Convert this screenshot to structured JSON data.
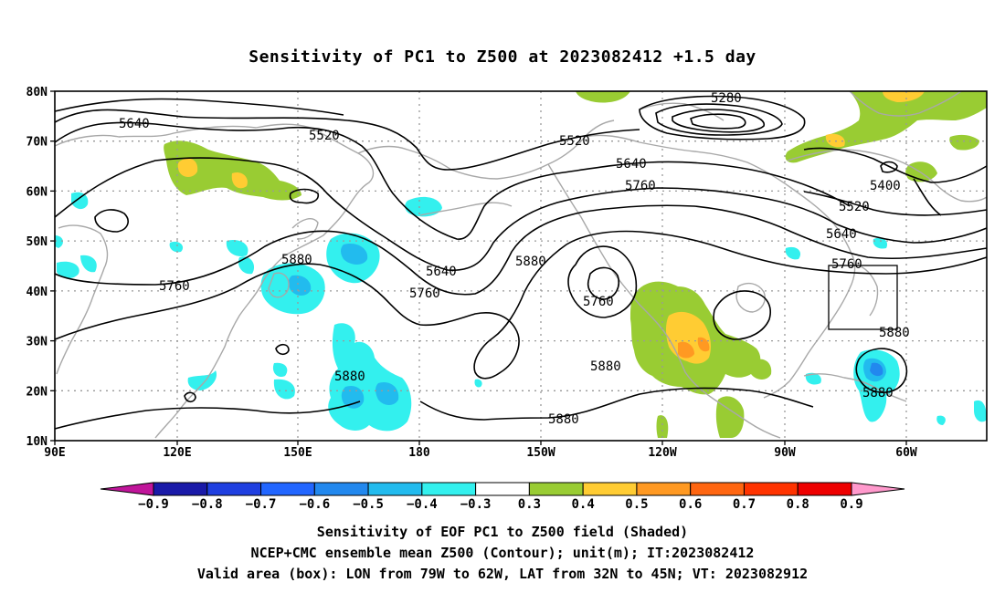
{
  "title": "Sensitivity of PC1 to Z500 at 2023082412 +1.5 day",
  "axes": {
    "lat_labels": [
      "80N",
      "70N",
      "60N",
      "50N",
      "40N",
      "30N",
      "20N",
      "10N"
    ],
    "lon_labels": [
      "90E",
      "120E",
      "150E",
      "180",
      "150W",
      "120W",
      "90W",
      "60W"
    ]
  },
  "contour_labels": [
    {
      "id": "c1",
      "text": "5280"
    },
    {
      "id": "c2",
      "text": "5640"
    },
    {
      "id": "c3",
      "text": "5520"
    },
    {
      "id": "c4",
      "text": "5520"
    },
    {
      "id": "c5",
      "text": "5640"
    },
    {
      "id": "c6",
      "text": "5760"
    },
    {
      "id": "c7",
      "text": "5400"
    },
    {
      "id": "c8",
      "text": "5520"
    },
    {
      "id": "c9",
      "text": "5640"
    },
    {
      "id": "c10",
      "text": "5760"
    },
    {
      "id": "c11",
      "text": "5880"
    },
    {
      "id": "c12",
      "text": "5760"
    },
    {
      "id": "c13",
      "text": "5880"
    },
    {
      "id": "c14",
      "text": "5640"
    },
    {
      "id": "c15",
      "text": "5760"
    },
    {
      "id": "c16",
      "text": "5880"
    },
    {
      "id": "c17",
      "text": "5760"
    },
    {
      "id": "c18",
      "text": "5880"
    },
    {
      "id": "c19",
      "text": "5880"
    },
    {
      "id": "c20",
      "text": "5880"
    },
    {
      "id": "c21",
      "text": "5880"
    }
  ],
  "colorbar": {
    "ticks": [
      "−0.9",
      "−0.8",
      "−0.7",
      "−0.6",
      "−0.5",
      "−0.4",
      "−0.3",
      "0.3",
      "0.4",
      "0.5",
      "0.6",
      "0.7",
      "0.8",
      "0.9"
    ],
    "colors": [
      "#1a1aa8",
      "#1f3fe0",
      "#2266ff",
      "#2288ee",
      "#22bbee",
      "#33f0ee",
      "#ffffff",
      "#99cc33",
      "#ffcc33",
      "#ff9922",
      "#ff6611",
      "#ff3300",
      "#ee0000"
    ],
    "under_color": "#c0159a",
    "over_color": "#ff99cc"
  },
  "footer": {
    "line1": "Sensitivity of EOF PC1 to Z500 field (Shaded)",
    "line2": "NCEP+CMC ensemble mean Z500 (Contour); unit(m); IT:2023082412",
    "line3": "Valid area (box): LON from 79W to 62W, LAT from 32N to 45N; VT: 2023082912"
  }
}
